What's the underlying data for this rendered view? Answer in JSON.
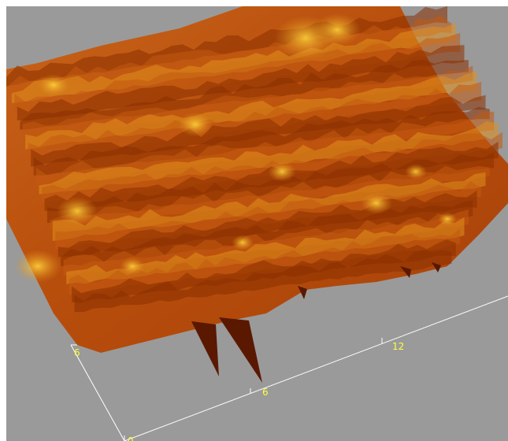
{
  "view": {
    "background_color": "#9a9a9a",
    "axis_color": "#ffffff",
    "label_color": "#ffff40",
    "surface_colors": {
      "shadow": "#5a1800",
      "dark": "#8a3000",
      "mid": "#c25a10",
      "light": "#e0901e",
      "highlight": "#ffd23a"
    }
  },
  "axes": {
    "x_ticks": [
      {
        "label": "0"
      },
      {
        "label": "6"
      },
      {
        "label": "12"
      }
    ],
    "y_ticks": [
      {
        "label": "6"
      }
    ]
  }
}
